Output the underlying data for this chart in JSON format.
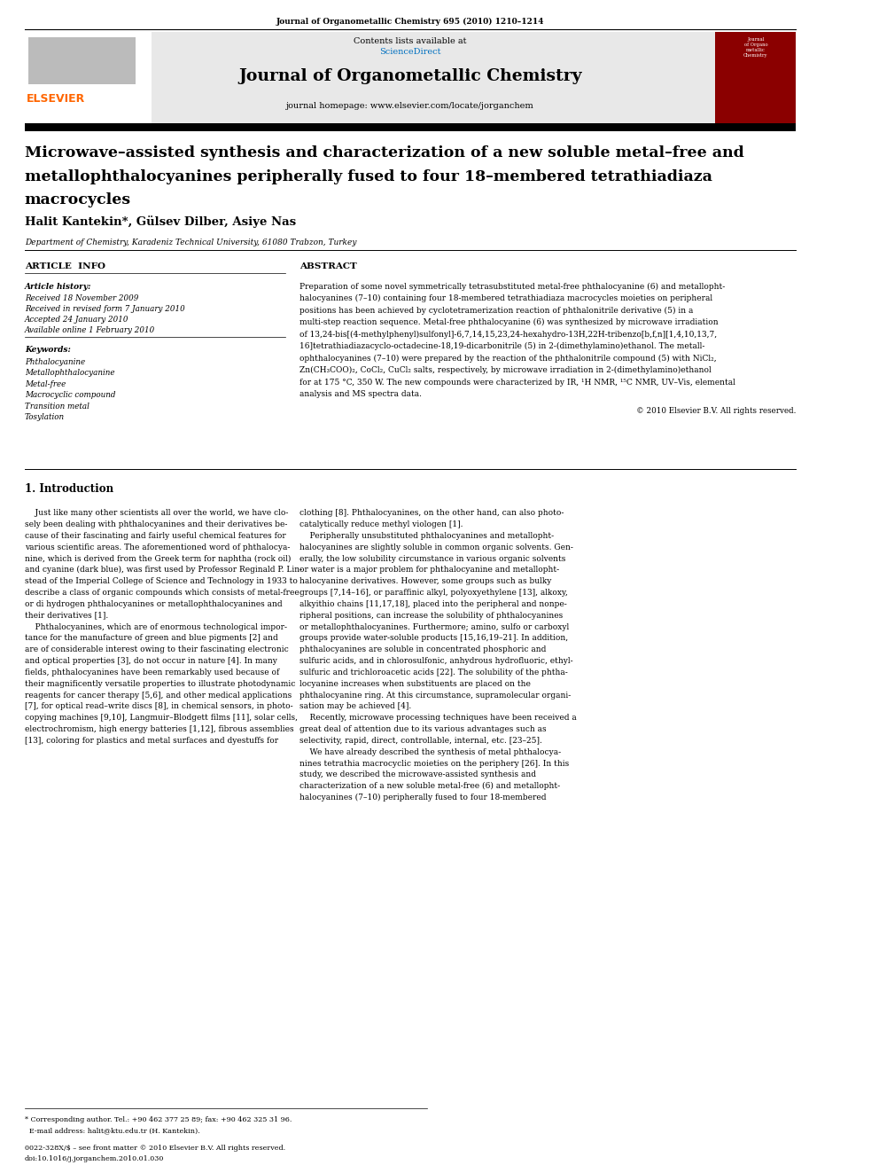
{
  "page_width": 9.92,
  "page_height": 13.23,
  "background_color": "#ffffff",
  "journal_header_text": "Journal of Organometallic Chemistry 695 (2010) 1210–1214",
  "header_bg_color": "#e8e8e8",
  "journal_name": "Journal of Organometallic Chemistry",
  "contents_text": "Contents lists available at",
  "sciencedirect_text": "ScienceDirect",
  "sciencedirect_color": "#0070c0",
  "homepage_text": "journal homepage: www.elsevier.com/locate/jorganchem",
  "elsevier_color": "#ff6600",
  "title_line1": "Microwave–assisted synthesis and characterization of a new soluble metal–free and",
  "title_line2": "metallophthalocyanines peripherally fused to four 18–membered tetrathiadiaza",
  "title_line3": "macrocycles",
  "authors": "Halit Kantekin*, Gülsev Dilber, Asiye Nas",
  "affiliation": "Department of Chemistry, Karadeniz Technical University, 61080 Trabzon, Turkey",
  "article_info_label": "ARTICLE  INFO",
  "abstract_label": "ABSTRACT",
  "article_history_label": "Article history:",
  "received_text": "Received 18 November 2009",
  "revised_text": "Received in revised form 7 January 2010",
  "accepted_text": "Accepted 24 January 2010",
  "available_text": "Available online 1 February 2010",
  "keywords_label": "Keywords:",
  "keywords": [
    "Phthalocyanine",
    "Metallophthalocyanine",
    "Metal-free",
    "Macrocyclic compound",
    "Transition metal",
    "Tosylation"
  ],
  "copyright_text": "© 2010 Elsevier B.V. All rights reserved.",
  "intro_header": "1. Introduction",
  "footnote_line1": "* Corresponding author. Tel.: +90 462 377 25 89; fax: +90 462 325 31 96.",
  "footnote_line2": "  E-mail address: halit@ktu.edu.tr (H. Kantekin).",
  "issn_text": "0022-328X/$ – see front matter © 2010 Elsevier B.V. All rights reserved.",
  "doi_text": "doi:10.1016/j.jorganchem.2010.01.030"
}
